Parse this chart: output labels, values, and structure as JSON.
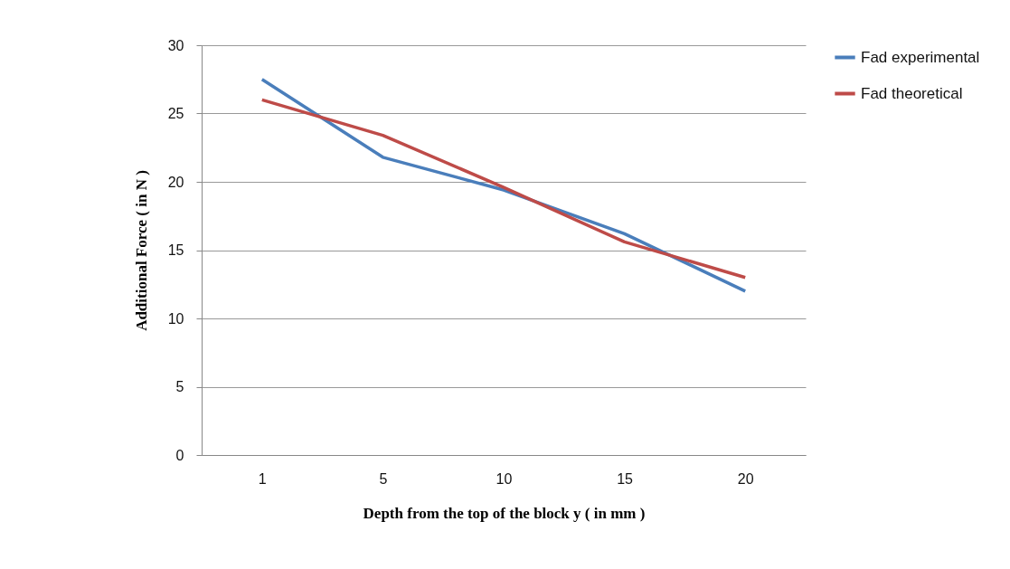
{
  "chart_data": {
    "type": "line",
    "xlabel": "Depth from the top of the block y ( in mm )",
    "ylabel": "Additional Force ( in N )",
    "categories": [
      "1",
      "5",
      "10",
      "15",
      "20"
    ],
    "series": [
      {
        "name": "Fad experimental",
        "color": "#4a7ebb",
        "values": [
          27.5,
          21.8,
          19.4,
          16.2,
          12.0
        ]
      },
      {
        "name": "Fad theoretical",
        "color": "#be4b48",
        "values": [
          26.0,
          23.4,
          19.6,
          15.6,
          13.0
        ]
      }
    ],
    "ylim": [
      0,
      30
    ],
    "yticks": [
      0,
      5,
      10,
      15,
      20,
      25,
      30
    ],
    "grid": "y",
    "legend": "right",
    "marker": "none",
    "line_style": "solid"
  }
}
